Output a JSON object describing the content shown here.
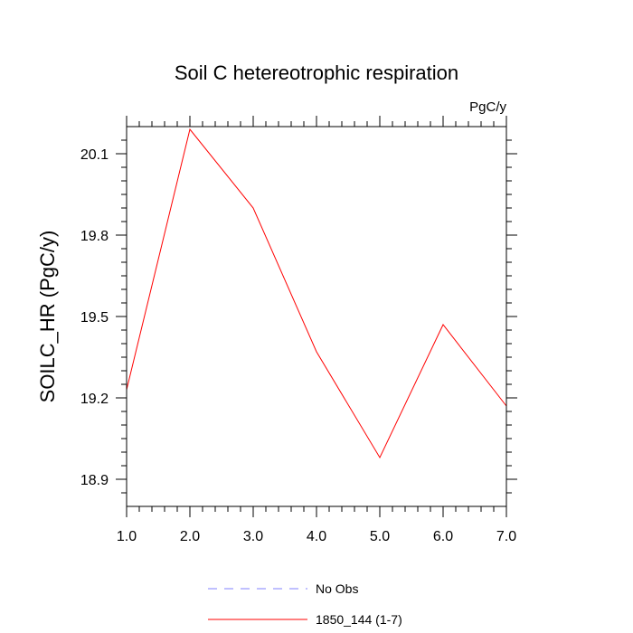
{
  "chart_data": {
    "type": "line",
    "title": "Soil C hetereotrophic respiration",
    "units_label": "PgC/y",
    "xlabel": "",
    "ylabel": "SOILC_HR  (PgC/y)",
    "xlim": [
      1.0,
      7.0
    ],
    "ylim": [
      18.8,
      20.2
    ],
    "x_ticks": [
      1.0,
      2.0,
      3.0,
      4.0,
      5.0,
      6.0,
      7.0
    ],
    "x_tick_labels": [
      "1.0",
      "2.0",
      "3.0",
      "4.0",
      "5.0",
      "6.0",
      "7.0"
    ],
    "y_ticks": [
      18.9,
      19.2,
      19.5,
      19.8,
      20.1
    ],
    "y_tick_labels": [
      "18.9",
      "19.2",
      "19.5",
      "19.8",
      "20.1"
    ],
    "y_minor_step": 0.05,
    "x_minor_step": 0.2,
    "grid": false,
    "legend_position": "bottom-center",
    "series": [
      {
        "name": "1850_144 (1-7)",
        "color": "#ff0000",
        "dash": "solid",
        "x": [
          1,
          2,
          3,
          4,
          5,
          6,
          7
        ],
        "values": [
          19.23,
          20.19,
          19.9,
          19.37,
          18.98,
          19.47,
          19.17
        ]
      }
    ],
    "legend": [
      {
        "label": "No Obs",
        "color": "#8080ff",
        "dash": "dashed"
      },
      {
        "label": "1850_144 (1-7)",
        "color": "#ff0000",
        "dash": "solid"
      }
    ]
  }
}
